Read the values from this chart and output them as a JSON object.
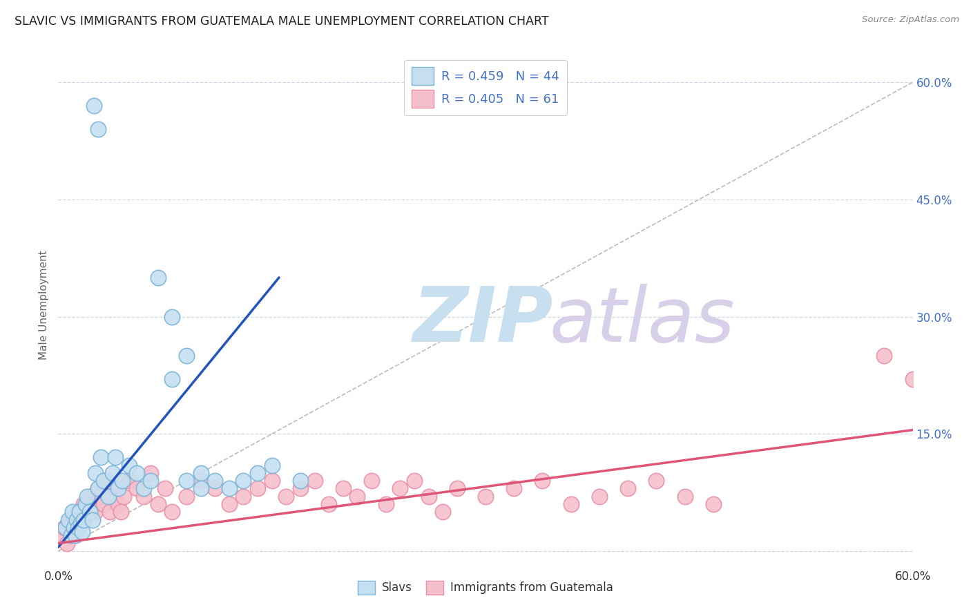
{
  "title": "SLAVIC VS IMMIGRANTS FROM GUATEMALA MALE UNEMPLOYMENT CORRELATION CHART",
  "source": "Source: ZipAtlas.com",
  "ylabel": "Male Unemployment",
  "y_tick_values": [
    0,
    0.15,
    0.3,
    0.45,
    0.6
  ],
  "y_tick_labels_right": [
    "",
    "15.0%",
    "30.0%",
    "45.0%",
    "60.0%"
  ],
  "x_range": [
    0,
    0.6
  ],
  "y_range": [
    -0.02,
    0.65
  ],
  "slavs_color": "#7ab4d8",
  "slavs_fill": "#c5dff0",
  "guatemala_color": "#e890a8",
  "guatemala_fill": "#f5c0cc",
  "blue_line_color": "#2255bb",
  "pink_line_color": "#dd5577",
  "diag_line_color": "#bbbbbb",
  "grid_color": "#c8d8e8",
  "background_color": "#ffffff",
  "slavs_x": [
    0.025,
    0.028,
    0.005,
    0.007,
    0.009,
    0.01,
    0.011,
    0.012,
    0.013,
    0.014,
    0.015,
    0.016,
    0.017,
    0.018,
    0.019,
    0.02,
    0.022,
    0.024,
    0.026,
    0.028,
    0.03,
    0.032,
    0.035,
    0.038,
    0.04,
    0.042,
    0.045,
    0.05,
    0.055,
    0.06,
    0.065,
    0.07,
    0.08,
    0.09,
    0.1,
    0.11,
    0.12,
    0.13,
    0.14,
    0.15,
    0.08,
    0.09,
    0.1,
    0.17
  ],
  "slavs_y": [
    0.57,
    0.54,
    0.03,
    0.04,
    0.02,
    0.05,
    0.03,
    0.02,
    0.04,
    0.03,
    0.05,
    0.035,
    0.025,
    0.04,
    0.06,
    0.07,
    0.05,
    0.04,
    0.1,
    0.08,
    0.12,
    0.09,
    0.07,
    0.1,
    0.12,
    0.08,
    0.09,
    0.11,
    0.1,
    0.08,
    0.09,
    0.35,
    0.22,
    0.25,
    0.1,
    0.09,
    0.08,
    0.09,
    0.1,
    0.11,
    0.3,
    0.09,
    0.08,
    0.09
  ],
  "guatemala_x": [
    0.002,
    0.004,
    0.006,
    0.008,
    0.01,
    0.012,
    0.014,
    0.016,
    0.018,
    0.02,
    0.022,
    0.024,
    0.026,
    0.028,
    0.03,
    0.032,
    0.034,
    0.036,
    0.038,
    0.04,
    0.042,
    0.044,
    0.046,
    0.05,
    0.055,
    0.06,
    0.065,
    0.07,
    0.075,
    0.08,
    0.09,
    0.1,
    0.11,
    0.12,
    0.13,
    0.14,
    0.15,
    0.16,
    0.17,
    0.18,
    0.19,
    0.2,
    0.21,
    0.22,
    0.23,
    0.24,
    0.25,
    0.26,
    0.27,
    0.28,
    0.3,
    0.32,
    0.34,
    0.36,
    0.38,
    0.4,
    0.42,
    0.44,
    0.46,
    0.58,
    0.6
  ],
  "guatemala_y": [
    0.02,
    0.03,
    0.01,
    0.04,
    0.03,
    0.02,
    0.05,
    0.04,
    0.06,
    0.05,
    0.07,
    0.06,
    0.05,
    0.08,
    0.07,
    0.06,
    0.09,
    0.05,
    0.07,
    0.08,
    0.06,
    0.05,
    0.07,
    0.09,
    0.08,
    0.07,
    0.1,
    0.06,
    0.08,
    0.05,
    0.07,
    0.09,
    0.08,
    0.06,
    0.07,
    0.08,
    0.09,
    0.07,
    0.08,
    0.09,
    0.06,
    0.08,
    0.07,
    0.09,
    0.06,
    0.08,
    0.09,
    0.07,
    0.05,
    0.08,
    0.07,
    0.08,
    0.09,
    0.06,
    0.07,
    0.08,
    0.09,
    0.07,
    0.06,
    0.25,
    0.22
  ],
  "blue_line_x": [
    0.0,
    0.155
  ],
  "blue_line_y": [
    0.005,
    0.35
  ],
  "pink_line_x": [
    0.0,
    0.6
  ],
  "pink_line_y": [
    0.01,
    0.155
  ],
  "diag_line_x": [
    0.0,
    0.6
  ],
  "diag_line_y": [
    0.0,
    0.6
  ],
  "legend_label_blue": "R = 0.459   N = 44",
  "legend_label_pink": "R = 0.405   N = 61",
  "legend_bottom_slavs": "Slavs",
  "legend_bottom_guatemala": "Immigrants from Guatemala"
}
